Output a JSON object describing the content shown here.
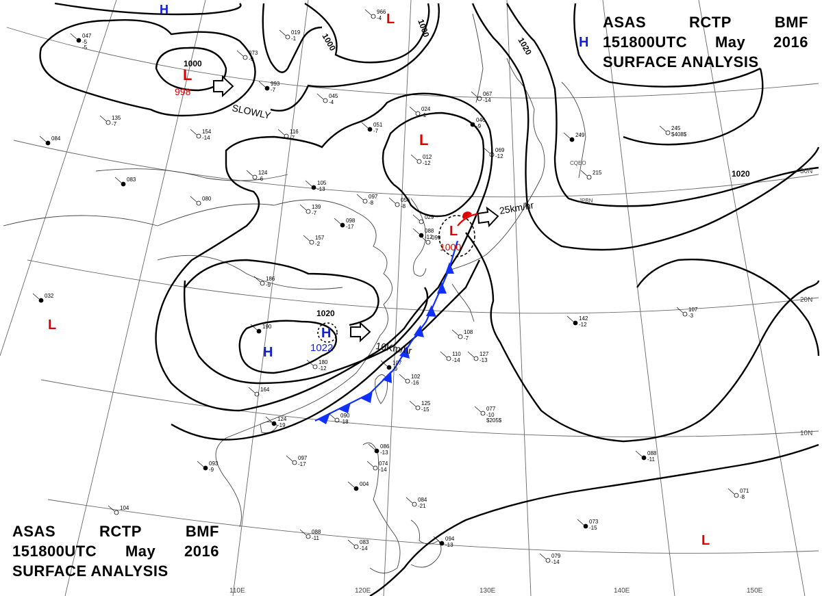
{
  "header": {
    "agency_code": "ASAS",
    "station": "RCTP",
    "unit": "BMF",
    "valid_time": "151800UTC",
    "month": "May",
    "year": "2016",
    "product": "SURFACE ANALYSIS"
  },
  "isobar_labels": [
    "1000",
    "1000",
    "1000",
    "1020",
    "1020",
    "1020"
  ],
  "pressure_centers": [
    {
      "type": "L",
      "value": "998",
      "color": "#e00000"
    },
    {
      "type": "L",
      "value": "",
      "color": "#e00000"
    },
    {
      "type": "L",
      "value": "",
      "color": "#e00000"
    },
    {
      "type": "L",
      "value": "1000",
      "color": "#e00000"
    },
    {
      "type": "L",
      "value": "",
      "color": "#e00000"
    },
    {
      "type": "L",
      "value": "",
      "color": "#e00000"
    },
    {
      "type": "H",
      "value": "1022",
      "color": "#1020d0"
    },
    {
      "type": "H",
      "value": "",
      "color": "#1020d0"
    },
    {
      "type": "H",
      "value": "",
      "color": "#1020d0"
    },
    {
      "type": "H",
      "value": "",
      "color": "#1020d0"
    }
  ],
  "motion_labels": {
    "low_north": "SLOWLY",
    "low_east": "25km/hr",
    "high_china": "10Km/hr"
  },
  "latitude_labels": [
    "30N",
    "20N",
    "10N"
  ],
  "longitude_labels": [
    "110E",
    "120E",
    "130E",
    "140E",
    "150E"
  ],
  "region_labels": [
    "CQEO",
    "JPBN"
  ],
  "colors": {
    "isobar": "#000000",
    "low": "#e00000",
    "high": "#1020d0",
    "cold_front": "#1030ff",
    "grid": "#555555",
    "coast": "#444444"
  },
  "stations": [
    {
      "t": "047",
      "r": [
        "-5",
        "-5"
      ]
    },
    {
      "t": "019",
      "r": [
        "-1"
      ]
    },
    {
      "t": "073",
      "r": [
        "-9"
      ]
    },
    {
      "t": "993",
      "r": [
        "-7"
      ]
    },
    {
      "t": "045",
      "r": [
        "-4"
      ]
    },
    {
      "t": "135",
      "r": [
        "-7"
      ]
    },
    {
      "t": "084",
      "r": []
    },
    {
      "t": "154",
      "r": [
        "-14"
      ]
    },
    {
      "t": "116",
      "r": [
        "-7"
      ]
    },
    {
      "t": "051",
      "r": [
        "-7"
      ]
    },
    {
      "t": "012",
      "r": [
        "-12"
      ]
    },
    {
      "t": "124",
      "r": [
        "-6"
      ]
    },
    {
      "t": "105",
      "r": [
        "-13"
      ]
    },
    {
      "t": "097",
      "r": [
        "-8"
      ]
    },
    {
      "t": "056",
      "r": [
        "-8"
      ]
    },
    {
      "t": "083",
      "r": []
    },
    {
      "t": "080",
      "r": []
    },
    {
      "t": "139",
      "r": [
        "-7"
      ]
    },
    {
      "t": "098",
      "r": [
        "-17"
      ]
    },
    {
      "t": "157",
      "r": [
        "-2"
      ]
    },
    {
      "t": "186",
      "r": [
        "-9"
      ]
    },
    {
      "t": "190",
      "r": []
    },
    {
      "t": "180",
      "r": [
        "-12"
      ]
    },
    {
      "t": "164",
      "r": []
    },
    {
      "t": "124",
      "r": [
        "-19"
      ]
    },
    {
      "t": "090",
      "r": [
        "-18"
      ]
    },
    {
      "t": "102",
      "r": [
        "-16"
      ]
    },
    {
      "t": "107",
      "r": [
        "-9"
      ]
    },
    {
      "t": "125",
      "r": [
        "-15"
      ]
    },
    {
      "t": "127",
      "r": [
        "-13"
      ]
    },
    {
      "t": "142",
      "r": [
        "-12"
      ]
    },
    {
      "t": "107",
      "r": [
        "-3"
      ]
    },
    {
      "t": "245",
      "r": [
        "$408$"
      ]
    },
    {
      "t": "249",
      "r": []
    },
    {
      "t": "215",
      "r": []
    },
    {
      "t": "077",
      "r": [
        "-10",
        "$205$"
      ]
    },
    {
      "t": "086",
      "r": [
        "-13"
      ]
    },
    {
      "t": "074",
      "r": [
        "-14"
      ]
    },
    {
      "t": "084",
      "r": [
        "-21"
      ]
    },
    {
      "t": "094",
      "r": [
        "-13"
      ]
    },
    {
      "t": "088",
      "r": [
        "-11"
      ]
    },
    {
      "t": "083",
      "r": [
        "-14"
      ]
    },
    {
      "t": "093",
      "r": [
        "-9"
      ]
    },
    {
      "t": "097",
      "r": [
        "-17"
      ]
    },
    {
      "t": "104",
      "r": []
    },
    {
      "t": "088",
      "r": [
        "-11"
      ]
    },
    {
      "t": "071",
      "r": [
        "-8"
      ]
    },
    {
      "t": "079",
      "r": [
        "-14"
      ]
    },
    {
      "t": "073",
      "r": [
        "-15"
      ]
    },
    {
      "t": "966",
      "r": [
        "-4"
      ]
    },
    {
      "t": "067",
      "r": [
        "-14"
      ]
    },
    {
      "t": "046",
      "r": [
        "-9"
      ]
    },
    {
      "t": "069",
      "r": [
        "-12"
      ]
    },
    {
      "t": "024",
      "r": [
        "-1"
      ]
    },
    {
      "t": "088",
      "r": [
        "-12"
      ]
    },
    {
      "t": "110",
      "r": [
        "-14"
      ]
    },
    {
      "t": "108",
      "r": [
        "-7"
      ]
    },
    {
      "t": "032",
      "r": []
    },
    {
      "t": "029",
      "r": []
    },
    {
      "t": "099",
      "r": []
    },
    {
      "t": "004",
      "r": []
    }
  ]
}
